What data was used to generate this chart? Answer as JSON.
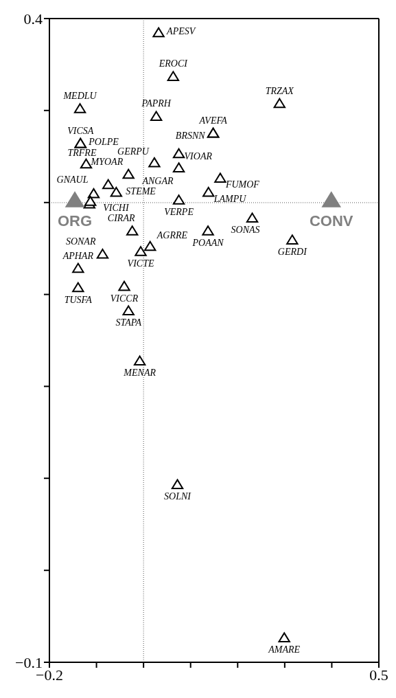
{
  "chart_data": {
    "type": "scatter",
    "xlim": [
      -0.2,
      0.5
    ],
    "xticks": [
      -0.2,
      {
        "value": -0.1,
        "label": null
      },
      {
        "value": 0,
        "label": null
      },
      {
        "value": 0.1,
        "label": null
      },
      {
        "value": 0.2,
        "label": null
      },
      {
        "value": 0.3,
        "label": null
      },
      {
        "value": 0.4,
        "label": null
      },
      0.5
    ],
    "ylim": [
      -0.1,
      0.4
    ],
    "yticks": [
      -0.1,
      {
        "value": -0.0286,
        "label": null
      },
      {
        "value": 0.0429,
        "label": null
      },
      {
        "value": 0.1143,
        "label": null
      },
      {
        "value": 0.1857,
        "label": null
      },
      {
        "value": 0.2571,
        "label": null
      },
      {
        "value": 0.3286,
        "label": null
      },
      0.4
    ],
    "legend": false,
    "marker": "triangle",
    "ref_lines": [
      {
        "axis": "x",
        "value": 0,
        "line_style": "dotted",
        "color": "#555555"
      },
      {
        "axis": "y",
        "value": 0.257,
        "line_style": "dotted",
        "color": "#555555"
      }
    ],
    "series": [
      {
        "color": "#000000",
        "x": [
          0.032,
          0.063,
          -0.135,
          0.027,
          0.289,
          0.148,
          0.148,
          -0.134,
          -0.134,
          -0.122,
          0.023,
          0.075,
          0.075,
          -0.032,
          -0.106,
          -0.075,
          -0.058,
          -0.115,
          -0.113,
          -0.024,
          0.014,
          -0.006,
          -0.087,
          -0.139,
          -0.139,
          -0.041,
          -0.032,
          -0.008,
          0.075,
          0.138,
          0.163,
          0.231,
          0.137,
          0.316,
          0.072,
          0.299
        ],
        "values": [
          0.389,
          0.355,
          0.33,
          0.324,
          0.334,
          0.311,
          0.311,
          0.303,
          0.303,
          0.287,
          0.288,
          0.295,
          0.284,
          0.279,
          0.264,
          0.271,
          0.265,
          0.256,
          0.258,
          0.235,
          0.223,
          0.219,
          0.217,
          0.206,
          0.191,
          0.192,
          0.173,
          0.134,
          0.259,
          0.265,
          0.276,
          0.245,
          0.235,
          0.228,
          0.038,
          -0.081
        ],
        "value_labels": [
          "APESV",
          "EROCI",
          "MEDLU",
          "PAPRH",
          "TRZAX",
          "AVEFA",
          "BRSNN",
          "VICSA",
          "POLPE",
          "TRFRE",
          "GERPU",
          "VIOAR",
          "ANGAR",
          "MYOAR",
          "GNAUL",
          null,
          "STEME",
          "VICHI",
          null,
          "CIRAR",
          "AGRRE",
          "VICTE",
          "SONAR",
          "APHAR",
          "TUSFA",
          "VICCR",
          "STAPA",
          "MENAR",
          "VERPE",
          "LAMPU",
          "FUMOF",
          "SONAS",
          "POAAN",
          "GERDI",
          "SOLNI",
          "AMARE"
        ]
      },
      {
        "color": "#808080",
        "x": [
          -0.146,
          0.399
        ],
        "values": [
          0.259,
          0.259
        ],
        "value_labels": [
          "ORG",
          "CONV"
        ]
      }
    ]
  }
}
